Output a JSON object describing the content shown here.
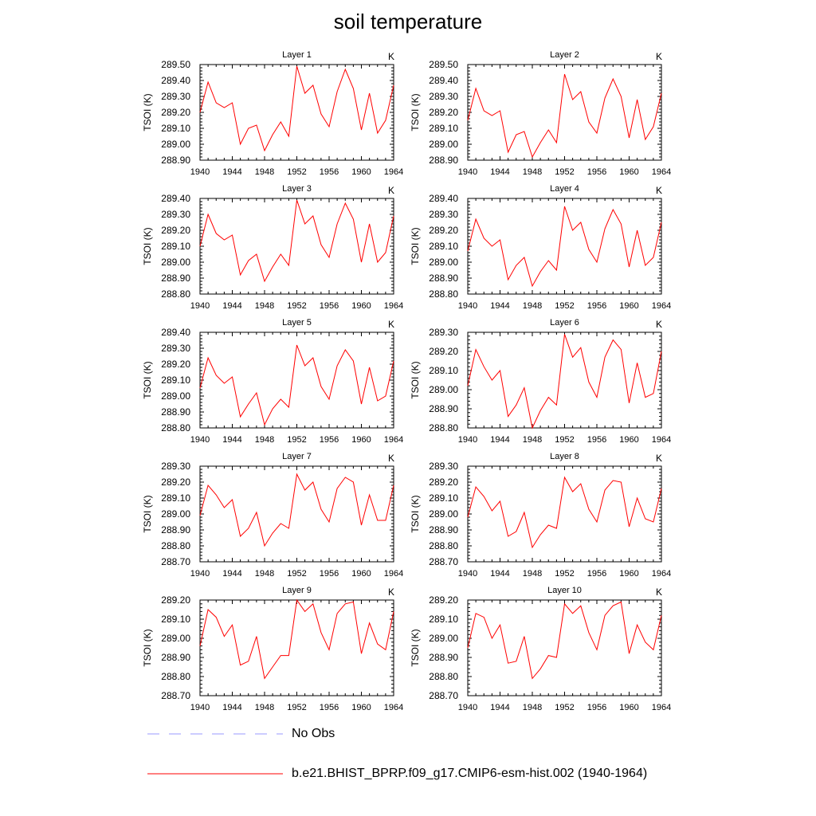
{
  "title": "soil temperature",
  "legend": {
    "obs_label": "No Obs",
    "obs_color": "#9999ff",
    "model_label": "b.e21.BHIST_BPRP.f09_g17.CMIP6-esm-hist.002 (1940-1964)",
    "model_color": "#ff0000"
  },
  "chart_data": [
    {
      "type": "line",
      "title": "Layer 1",
      "units": "K",
      "ylabel": "TSOI  (K)",
      "xlim": [
        1940,
        1964
      ],
      "xticks": [
        1940,
        1944,
        1948,
        1952,
        1956,
        1960,
        1964
      ],
      "ylim": [
        288.9,
        289.5
      ],
      "yticks": [
        288.9,
        289.0,
        289.1,
        289.2,
        289.3,
        289.4,
        289.5
      ],
      "series": [
        {
          "name": "b.e21.BHIST_BPRP.f09_g17.CMIP6-esm-hist.002 (1940-1964)",
          "values": [
            289.2,
            289.39,
            289.26,
            289.23,
            289.26,
            289.0,
            289.1,
            289.12,
            288.96,
            289.06,
            289.14,
            289.05,
            289.49,
            289.32,
            289.37,
            289.19,
            289.11,
            289.33,
            289.47,
            289.35,
            289.09,
            289.32,
            289.07,
            289.15,
            289.37
          ]
        }
      ]
    },
    {
      "type": "line",
      "title": "Layer 2",
      "units": "K",
      "ylabel": "TSOI  (K)",
      "xlim": [
        1940,
        1964
      ],
      "xticks": [
        1940,
        1944,
        1948,
        1952,
        1956,
        1960,
        1964
      ],
      "ylim": [
        288.9,
        289.5
      ],
      "yticks": [
        288.9,
        289.0,
        289.1,
        289.2,
        289.3,
        289.4,
        289.5
      ],
      "series": [
        {
          "name": "b.e21.BHIST_BPRP.f09_g17.CMIP6-esm-hist.002 (1940-1964)",
          "values": [
            289.15,
            289.35,
            289.21,
            289.18,
            289.21,
            288.95,
            289.06,
            289.08,
            288.92,
            289.01,
            289.09,
            289.01,
            289.44,
            289.28,
            289.33,
            289.14,
            289.07,
            289.29,
            289.41,
            289.3,
            289.04,
            289.28,
            289.03,
            289.11,
            289.32
          ]
        }
      ]
    },
    {
      "type": "line",
      "title": "Layer 3",
      "units": "K",
      "ylabel": "TSOI  (K)",
      "xlim": [
        1940,
        1964
      ],
      "xticks": [
        1940,
        1944,
        1948,
        1952,
        1956,
        1960,
        1964
      ],
      "ylim": [
        288.8,
        289.4
      ],
      "yticks": [
        288.8,
        288.9,
        289.0,
        289.1,
        289.2,
        289.3,
        289.4
      ],
      "series": [
        {
          "name": "b.e21.BHIST_BPRP.f09_g17.CMIP6-esm-hist.002 (1940-1964)",
          "values": [
            289.1,
            289.3,
            289.18,
            289.14,
            289.17,
            288.92,
            289.01,
            289.05,
            288.88,
            288.97,
            289.05,
            288.98,
            289.39,
            289.24,
            289.29,
            289.11,
            289.03,
            289.24,
            289.37,
            289.27,
            289.0,
            289.24,
            289.0,
            289.06,
            289.29
          ]
        }
      ]
    },
    {
      "type": "line",
      "title": "Layer 4",
      "units": "K",
      "ylabel": "TSOI  (K)",
      "xlim": [
        1940,
        1964
      ],
      "xticks": [
        1940,
        1944,
        1948,
        1952,
        1956,
        1960,
        1964
      ],
      "ylim": [
        288.8,
        289.4
      ],
      "yticks": [
        288.8,
        288.9,
        289.0,
        289.1,
        289.2,
        289.3,
        289.4
      ],
      "series": [
        {
          "name": "b.e21.BHIST_BPRP.f09_g17.CMIP6-esm-hist.002 (1940-1964)",
          "values": [
            289.07,
            289.27,
            289.15,
            289.1,
            289.14,
            288.89,
            288.98,
            289.03,
            288.85,
            288.94,
            289.01,
            288.95,
            289.35,
            289.2,
            289.25,
            289.08,
            289.0,
            289.21,
            289.33,
            289.24,
            288.97,
            289.2,
            288.98,
            289.03,
            289.25
          ]
        }
      ]
    },
    {
      "type": "line",
      "title": "Layer 5",
      "units": "K",
      "ylabel": "TSOI  (K)",
      "xlim": [
        1940,
        1964
      ],
      "xticks": [
        1940,
        1944,
        1948,
        1952,
        1956,
        1960,
        1964
      ],
      "ylim": [
        288.8,
        289.4
      ],
      "yticks": [
        288.8,
        288.9,
        289.0,
        289.1,
        289.2,
        289.3,
        289.4
      ],
      "series": [
        {
          "name": "b.e21.BHIST_BPRP.f09_g17.CMIP6-esm-hist.002 (1940-1964)",
          "values": [
            289.05,
            289.24,
            289.13,
            289.08,
            289.12,
            288.87,
            288.95,
            289.02,
            288.82,
            288.92,
            288.98,
            288.93,
            289.32,
            289.19,
            289.24,
            289.06,
            288.98,
            289.19,
            289.29,
            289.22,
            288.95,
            289.18,
            288.97,
            289.0,
            289.22
          ]
        }
      ]
    },
    {
      "type": "line",
      "title": "Layer 6",
      "units": "K",
      "ylabel": "TSOI  (K)",
      "xlim": [
        1940,
        1964
      ],
      "xticks": [
        1940,
        1944,
        1948,
        1952,
        1956,
        1960,
        1964
      ],
      "ylim": [
        288.8,
        289.3
      ],
      "yticks": [
        288.8,
        288.9,
        289.0,
        289.1,
        289.2,
        289.3
      ],
      "series": [
        {
          "name": "b.e21.BHIST_BPRP.f09_g17.CMIP6-esm-hist.002 (1940-1964)",
          "values": [
            289.02,
            289.21,
            289.12,
            289.05,
            289.1,
            288.86,
            288.92,
            289.01,
            288.8,
            288.89,
            288.96,
            288.92,
            289.29,
            289.17,
            289.22,
            289.04,
            288.96,
            289.17,
            289.26,
            289.21,
            288.93,
            289.14,
            288.96,
            288.98,
            289.2
          ]
        }
      ]
    },
    {
      "type": "line",
      "title": "Layer 7",
      "units": "K",
      "ylabel": "TSOI  (K)",
      "xlim": [
        1940,
        1964
      ],
      "xticks": [
        1940,
        1944,
        1948,
        1952,
        1956,
        1960,
        1964
      ],
      "ylim": [
        288.7,
        289.3
      ],
      "yticks": [
        288.7,
        288.8,
        288.9,
        289.0,
        289.1,
        289.2,
        289.3
      ],
      "series": [
        {
          "name": "b.e21.BHIST_BPRP.f09_g17.CMIP6-esm-hist.002 (1940-1964)",
          "values": [
            288.99,
            289.18,
            289.12,
            289.04,
            289.09,
            288.86,
            288.91,
            289.01,
            288.8,
            288.88,
            288.94,
            288.91,
            289.25,
            289.15,
            289.2,
            289.03,
            288.95,
            289.16,
            289.23,
            289.2,
            288.93,
            289.12,
            288.96,
            288.96,
            289.18
          ]
        }
      ]
    },
    {
      "type": "line",
      "title": "Layer 8",
      "units": "K",
      "ylabel": "TSOI  (K)",
      "xlim": [
        1940,
        1964
      ],
      "xticks": [
        1940,
        1944,
        1948,
        1952,
        1956,
        1960,
        1964
      ],
      "ylim": [
        288.7,
        289.3
      ],
      "yticks": [
        288.7,
        288.8,
        288.9,
        289.0,
        289.1,
        289.2,
        289.3
      ],
      "series": [
        {
          "name": "b.e21.BHIST_BPRP.f09_g17.CMIP6-esm-hist.002 (1940-1964)",
          "values": [
            288.98,
            289.17,
            289.11,
            289.02,
            289.08,
            288.86,
            288.89,
            289.01,
            288.79,
            288.87,
            288.93,
            288.91,
            289.23,
            289.14,
            289.19,
            289.03,
            288.95,
            289.15,
            289.21,
            289.2,
            288.92,
            289.1,
            288.97,
            288.95,
            289.16
          ]
        }
      ]
    },
    {
      "type": "line",
      "title": "Layer 9",
      "units": "K",
      "ylabel": "TSOI  (K)",
      "xlim": [
        1940,
        1964
      ],
      "xticks": [
        1940,
        1944,
        1948,
        1952,
        1956,
        1960,
        1964
      ],
      "ylim": [
        288.7,
        289.2
      ],
      "yticks": [
        288.7,
        288.8,
        288.9,
        289.0,
        289.1,
        289.2
      ],
      "series": [
        {
          "name": "b.e21.BHIST_BPRP.f09_g17.CMIP6-esm-hist.002 (1940-1964)",
          "values": [
            288.96,
            289.15,
            289.11,
            289.01,
            289.07,
            288.86,
            288.88,
            289.01,
            288.79,
            288.85,
            288.91,
            288.91,
            289.2,
            289.14,
            289.18,
            289.03,
            288.94,
            289.13,
            289.18,
            289.19,
            288.92,
            289.08,
            288.97,
            288.94,
            289.14
          ]
        }
      ]
    },
    {
      "type": "line",
      "title": "Layer 10",
      "units": "K",
      "ylabel": "TSOI  (K)",
      "xlim": [
        1940,
        1964
      ],
      "xticks": [
        1940,
        1944,
        1948,
        1952,
        1956,
        1960,
        1964
      ],
      "ylim": [
        288.7,
        289.2
      ],
      "yticks": [
        288.7,
        288.8,
        288.9,
        289.0,
        289.1,
        289.2
      ],
      "series": [
        {
          "name": "b.e21.BHIST_BPRP.f09_g17.CMIP6-esm-hist.002 (1940-1964)",
          "values": [
            288.95,
            289.13,
            289.11,
            289.0,
            289.07,
            288.87,
            288.88,
            289.01,
            288.79,
            288.84,
            288.91,
            288.9,
            289.18,
            289.13,
            289.17,
            289.03,
            288.94,
            289.12,
            289.17,
            289.19,
            288.92,
            289.07,
            288.98,
            288.94,
            289.12
          ]
        }
      ]
    }
  ]
}
